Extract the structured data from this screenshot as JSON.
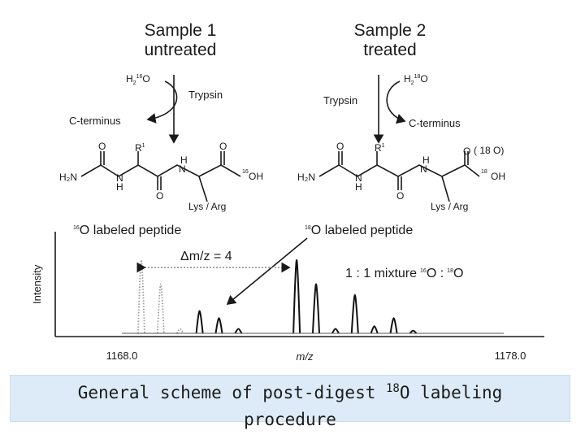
{
  "diagram": {
    "sample1_title": "Sample 1",
    "sample1_subtitle": "untreated",
    "sample2_title": "Sample 2",
    "sample2_subtitle": "treated",
    "water16_main": "H",
    "water16_sub2": "2",
    "water16_sup": "16",
    "water16_o": "O",
    "water18_main": "H",
    "water18_sub2": "2",
    "water18_sup": "18",
    "water18_o": "O",
    "trypsin_label": "Trypsin",
    "cterminus_label": "C-terminus",
    "peptide_h2n": "H₂N",
    "peptide_n": "N",
    "peptide_h": "H",
    "peptide_o": "O",
    "peptide_r": "R",
    "peptide_r_sup": "1",
    "peptide_oh": "OH",
    "peptide_16": "16",
    "peptide_18": "18",
    "peptide_lys_arg": "Lys / Arg",
    "bracket_18o": "( 18 O)"
  },
  "chart_data": {
    "type": "line",
    "xlabel": "m/z",
    "ylabel": "Intensity",
    "xlim": [
      1168.0,
      1178.0
    ],
    "x_ticks": [
      "1168.0",
      "1178.0"
    ],
    "annotations": {
      "o16_label_sup": "16",
      "o16_label": "O labeled peptide",
      "o18_label_sup": "18",
      "o18_label": "O labeled peptide",
      "delta_label": "Δm/z = 4",
      "mixture_label": "1 : 1 mixture",
      "mixture_16": "16",
      "mixture_o1": "O :",
      "mixture_18": "18",
      "mixture_o2": "O"
    },
    "series": [
      {
        "style": "dotted",
        "peaks": [
          {
            "x": 1168.5,
            "y": 0.82
          },
          {
            "x": 1169.0,
            "y": 0.55
          },
          {
            "x": 1169.5,
            "y": 0.05
          }
        ]
      },
      {
        "style": "solid",
        "peaks": [
          {
            "x": 1170.0,
            "y": 0.25
          },
          {
            "x": 1170.5,
            "y": 0.17
          },
          {
            "x": 1171.0,
            "y": 0.05
          },
          {
            "x": 1172.5,
            "y": 0.82
          },
          {
            "x": 1173.0,
            "y": 0.55
          },
          {
            "x": 1173.5,
            "y": 0.05
          },
          {
            "x": 1174.0,
            "y": 0.43
          },
          {
            "x": 1174.5,
            "y": 0.08
          },
          {
            "x": 1175.0,
            "y": 0.17
          },
          {
            "x": 1175.5,
            "y": 0.03
          }
        ]
      }
    ]
  },
  "caption": {
    "line1_pre": "General scheme of post-digest ",
    "line1_sup": "18",
    "line1_post": "O labeling",
    "line2": "procedure"
  }
}
